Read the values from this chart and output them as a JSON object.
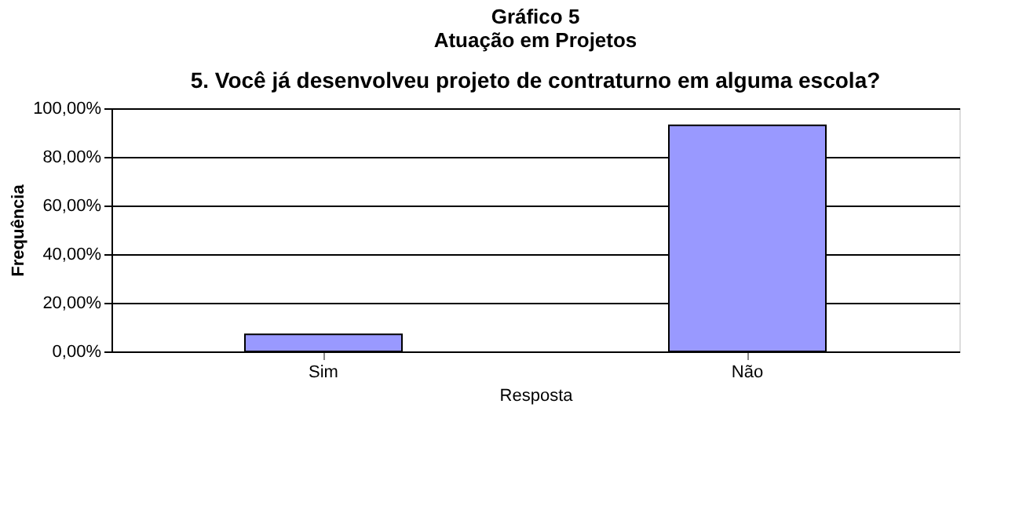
{
  "chart_data": {
    "type": "bar",
    "title": "Gráfico 5\nAtuação em Projetos",
    "subtitle": "5. Você já desenvolveu projeto de contraturno em alguma escola?",
    "xlabel": "Resposta",
    "ylabel": "Frequência",
    "categories": [
      "Sim",
      "Não"
    ],
    "values": [
      7,
      93
    ],
    "color": "#9999ff",
    "ylim": [
      0,
      100
    ],
    "yticks": [
      {
        "value": 0,
        "label": "0,00%"
      },
      {
        "value": 20,
        "label": "20,00%"
      },
      {
        "value": 40,
        "label": "40,00%"
      },
      {
        "value": 60,
        "label": "60,00%"
      },
      {
        "value": 80,
        "label": "80,00%"
      },
      {
        "value": 100,
        "label": "100,00%"
      }
    ],
    "grid": "y"
  }
}
